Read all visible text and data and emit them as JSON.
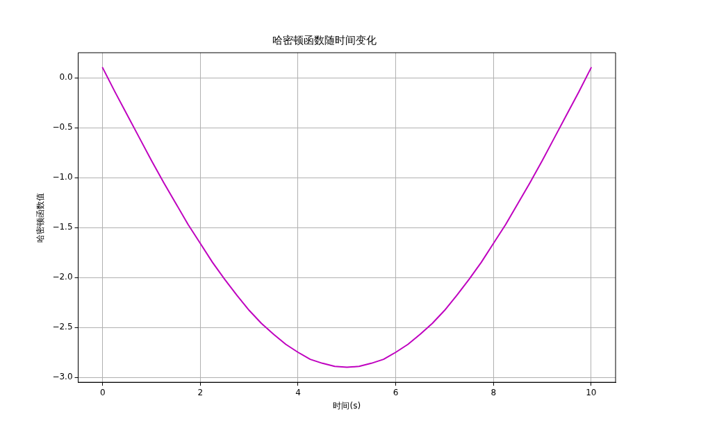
{
  "chart_data": {
    "type": "line",
    "title": "哈密顿函数随时间变化",
    "xlabel": "时间(s)",
    "ylabel": "哈密顿函数值",
    "x": [
      0,
      0.25,
      0.5,
      0.75,
      1,
      1.25,
      1.5,
      1.75,
      2,
      2.25,
      2.5,
      2.75,
      3,
      3.25,
      3.5,
      3.75,
      4,
      4.25,
      4.5,
      4.75,
      5,
      5.25,
      5.5,
      5.75,
      6,
      6.25,
      6.5,
      6.75,
      7,
      7.25,
      7.5,
      7.75,
      8,
      8.25,
      8.5,
      8.75,
      9,
      9.25,
      9.5,
      9.75,
      10
    ],
    "series": [
      {
        "color": "#bf00bf",
        "values": [
          0.1,
          -0.14,
          -0.37,
          -0.6,
          -0.83,
          -1.05,
          -1.26,
          -1.47,
          -1.66,
          -1.85,
          -2.02,
          -2.18,
          -2.33,
          -2.46,
          -2.57,
          -2.67,
          -2.75,
          -2.82,
          -2.86,
          -2.89,
          -2.9,
          -2.89,
          -2.86,
          -2.82,
          -2.75,
          -2.67,
          -2.57,
          -2.46,
          -2.33,
          -2.18,
          -2.02,
          -1.85,
          -1.66,
          -1.47,
          -1.26,
          -1.05,
          -0.83,
          -0.6,
          -0.37,
          -0.14,
          0.1
        ]
      }
    ],
    "xlim": [
      -0.5,
      10.5
    ],
    "xticks": [
      0,
      2,
      4,
      6,
      8,
      10
    ],
    "ylim": [
      -3.05,
      0.25
    ],
    "yticks": [
      {
        "value": -3,
        "label": "−3.0"
      },
      {
        "value": -2.5,
        "label": "−2.5"
      },
      {
        "value": -2,
        "label": "−2.0"
      },
      {
        "value": -1.5,
        "label": "−1.5"
      },
      {
        "value": -1,
        "label": "−1.0"
      },
      {
        "value": -0.5,
        "label": "−0.5"
      },
      {
        "value": 0,
        "label": "0.0"
      }
    ],
    "grid": true,
    "legend": false,
    "marker": "none",
    "line_style": "solid"
  }
}
